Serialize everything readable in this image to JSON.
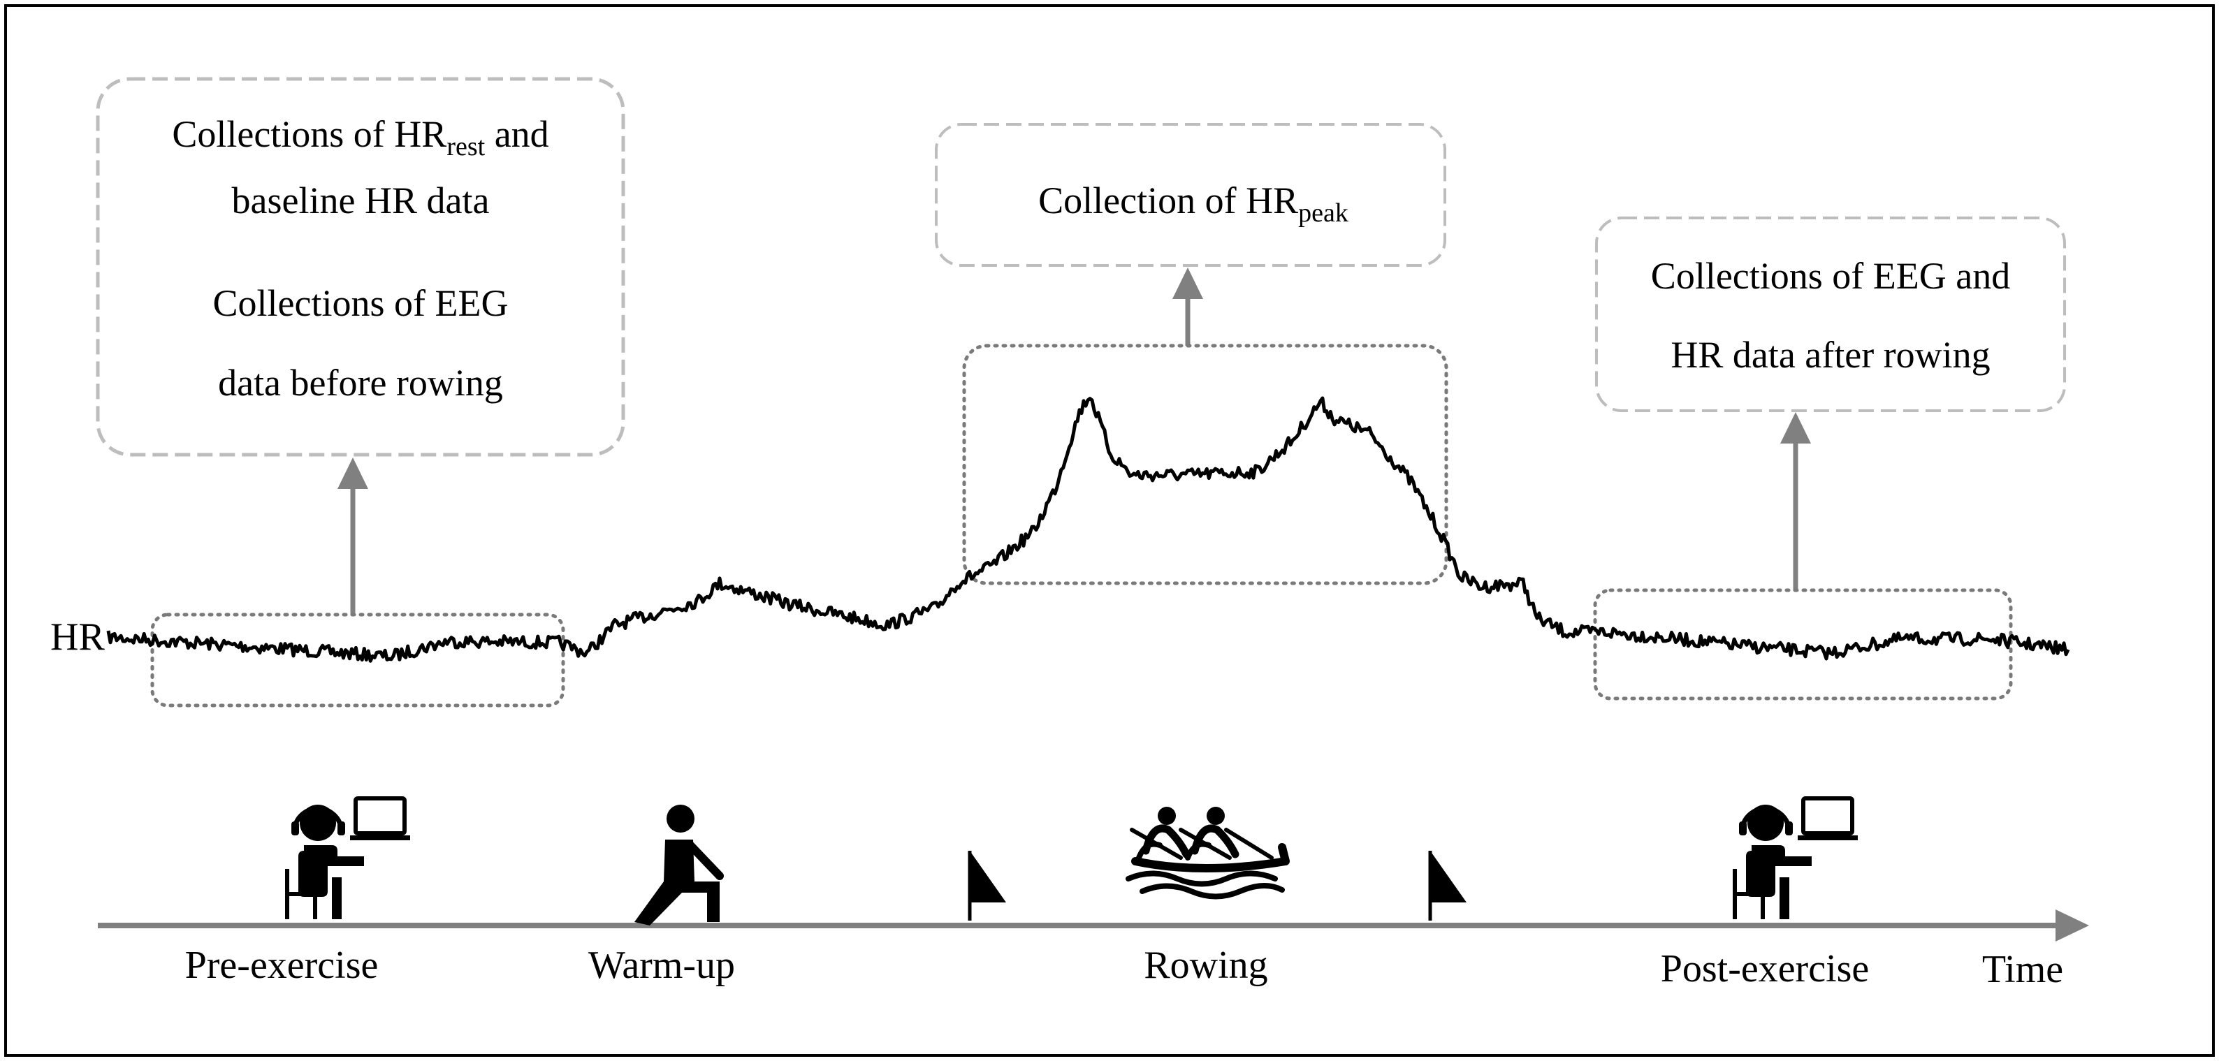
{
  "signal": {
    "label": "HR"
  },
  "boxes": {
    "pre": {
      "line1_main": "Collections of HR",
      "line1_sub": "rest",
      "line1_tail": " and",
      "line2": "baseline HR data",
      "line3": "Collections of EEG",
      "line4": "data before rowing"
    },
    "peak": {
      "main": "Collection of HR",
      "sub": "peak"
    },
    "post": {
      "line1": "Collections of EEG and",
      "line2": "HR data after rowing"
    }
  },
  "timeline": {
    "axis_label": "Time",
    "phases": [
      {
        "label": "Pre-exercise",
        "icon": "seated-person-laptop-icon"
      },
      {
        "label": "Warm-up",
        "icon": "stretching-person-icon"
      },
      {
        "label": "Rowing",
        "icon": "rowing-crew-icon"
      },
      {
        "label": "Post-exercise",
        "icon": "seated-person-laptop-icon"
      }
    ]
  }
}
